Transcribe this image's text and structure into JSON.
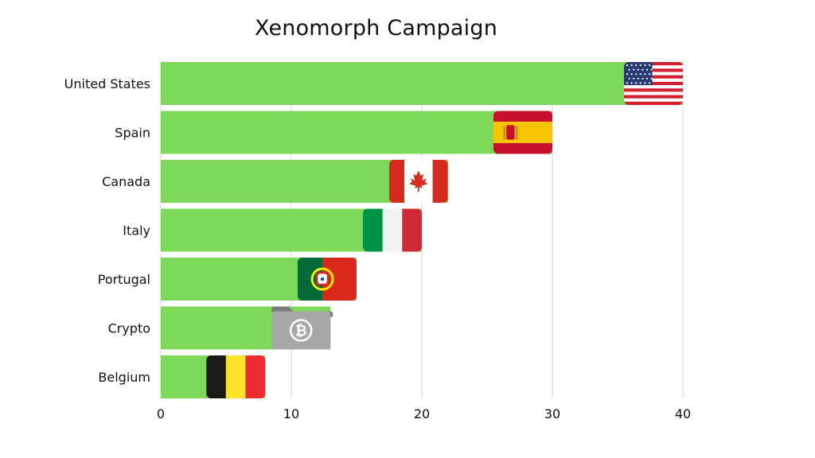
{
  "chart_data": {
    "type": "bar",
    "orientation": "horizontal",
    "title": "Xenomorph Campaign",
    "categories": [
      "United States",
      "Spain",
      "Canada",
      "Italy",
      "Portugal",
      "Crypto",
      "Belgium"
    ],
    "values": [
      40,
      30,
      22,
      20,
      15,
      13,
      8
    ],
    "icons": [
      "us-flag-icon",
      "spain-flag-icon",
      "canada-flag-icon",
      "italy-flag-icon",
      "portugal-flag-icon",
      "bitcoin-folder-icon",
      "belgium-flag-icon"
    ],
    "xlim": [
      0,
      40
    ],
    "xticks": [
      0,
      10,
      20,
      30,
      40
    ],
    "xlabel": "",
    "ylabel": "",
    "grid": "vertical",
    "bar_color": "#7ed95b"
  }
}
